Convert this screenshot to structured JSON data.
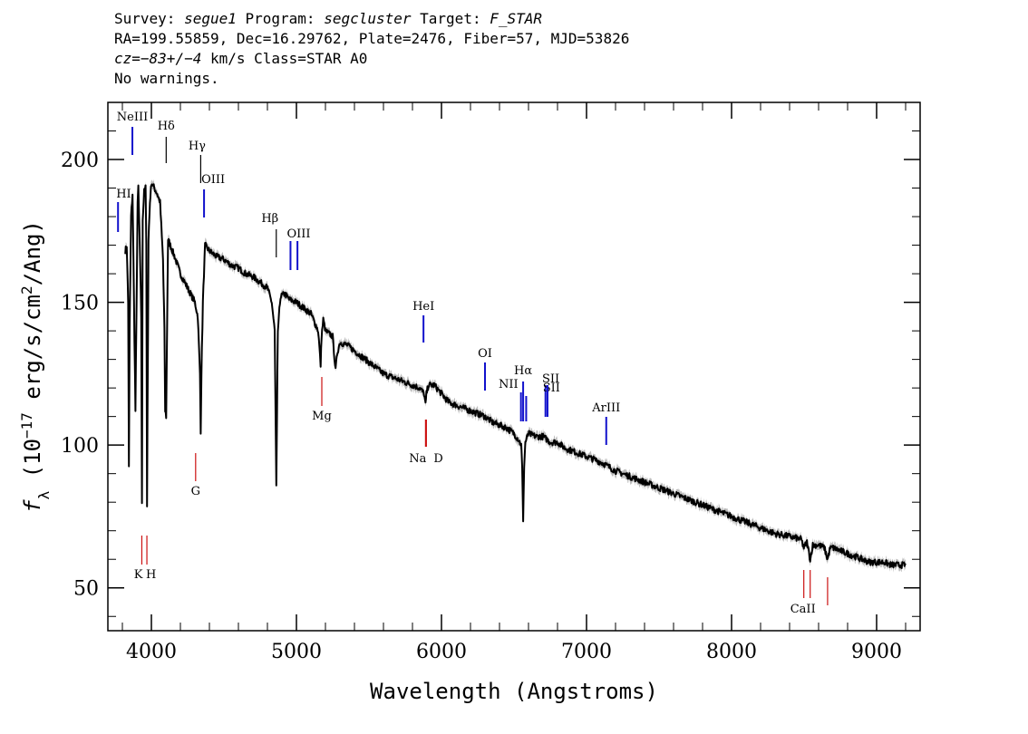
{
  "header": {
    "line1": {
      "survey_label": "Survey: ",
      "survey": "segue1",
      "program_label": " Program: ",
      "program": "segcluster",
      "target_label": " Target: ",
      "target": "F_STAR"
    },
    "line2": "RA=199.55859, Dec=16.29762, Plate=2476, Fiber=57, MJD=53826",
    "line3": {
      "cz": "cz",
      "eq": "=",
      "value": "−83+/−4",
      "rest": " km/s Class=STAR A0"
    },
    "line4": "No warnings."
  },
  "chart_data": {
    "type": "line",
    "title": "",
    "xlabel": "Wavelength (Angstroms)",
    "ylabel": {
      "f": "f",
      "sub": "λ",
      "open": " (10",
      "sup": "−17",
      "mid": " erg/s/cm",
      "sup2": "2",
      "close": "/Ang)"
    },
    "xlim": [
      3700,
      9300
    ],
    "ylim": [
      35,
      220
    ],
    "xticks": [
      4000,
      5000,
      6000,
      7000,
      8000,
      9000
    ],
    "xtick_labels": [
      "4000",
      "5000",
      "6000",
      "7000",
      "8000",
      "9000"
    ],
    "yticks": [
      50,
      100,
      150,
      200
    ],
    "ytick_labels": [
      "50",
      "100",
      "150",
      "200"
    ],
    "series": [
      {
        "color": "#000000",
        "error_color": "#bbbbbb",
        "x": [
          3820,
          3830,
          3840,
          3845,
          3850,
          3860,
          3870,
          3875,
          3880,
          3890,
          3900,
          3905,
          3910,
          3920,
          3930,
          3935,
          3940,
          3950,
          3960,
          3965,
          3970,
          3980,
          3990,
          4000,
          4020,
          4040,
          4060,
          4080,
          4090,
          4095,
          4102,
          4108,
          4115,
          4130,
          4160,
          4200,
          4250,
          4300,
          4320,
          4335,
          4340,
          4345,
          4355,
          4370,
          4400,
          4450,
          4500,
          4550,
          4600,
          4650,
          4700,
          4750,
          4800,
          4830,
          4850,
          4856,
          4861,
          4866,
          4872,
          4890,
          4920,
          4950,
          5000,
          5050,
          5100,
          5150,
          5167,
          5173,
          5185,
          5200,
          5250,
          5270,
          5280,
          5300,
          5350,
          5400,
          5450,
          5500,
          5550,
          5600,
          5650,
          5700,
          5750,
          5800,
          5850,
          5880,
          5890,
          5896,
          5910,
          5950,
          6000,
          6050,
          6100,
          6150,
          6200,
          6250,
          6300,
          6350,
          6400,
          6450,
          6500,
          6530,
          6550,
          6556,
          6563,
          6570,
          6578,
          6600,
          6650,
          6700,
          6750,
          6800,
          6850,
          6900,
          6950,
          7000,
          7100,
          7200,
          7300,
          7400,
          7500,
          7600,
          7700,
          7800,
          7900,
          8000,
          8100,
          8200,
          8300,
          8400,
          8480,
          8498,
          8520,
          8542,
          8560,
          8600,
          8640,
          8662,
          8680,
          8700,
          8750,
          8800,
          8850,
          8900,
          8950,
          9000,
          9050,
          9100,
          9150,
          9200
        ],
        "y": [
          168,
          170,
          150,
          92,
          140,
          180,
          188,
          170,
          150,
          112,
          160,
          185,
          190,
          170,
          145,
          80,
          178,
          190,
          190,
          170,
          78,
          172,
          185,
          192,
          190,
          188,
          185,
          165,
          140,
          112,
          110,
          140,
          172,
          170,
          166,
          160,
          155,
          150,
          145,
          125,
          105,
          125,
          150,
          170,
          168,
          166,
          165,
          163,
          162,
          160,
          159,
          157,
          155,
          150,
          140,
          110,
          85,
          110,
          140,
          152,
          153,
          151,
          150,
          148,
          146,
          140,
          128,
          138,
          144,
          140,
          138,
          126,
          132,
          136,
          135,
          133,
          131,
          129,
          127,
          125,
          124,
          123,
          122,
          121,
          120,
          118,
          114,
          118,
          121,
          121,
          118,
          115,
          114,
          113,
          112,
          111,
          110,
          108,
          107,
          106,
          104,
          102,
          100,
          92,
          74,
          92,
          101,
          104,
          103,
          103,
          101,
          101,
          99,
          98,
          97,
          96,
          94,
          91,
          89,
          87,
          85,
          83,
          81,
          79,
          77,
          75,
          73,
          71,
          69,
          68,
          67,
          64,
          66,
          60,
          65,
          65,
          64,
          60,
          64,
          64,
          63,
          62,
          61,
          60,
          59,
          59,
          59,
          58,
          58,
          58
        ]
      }
    ],
    "line_markers": [
      {
        "label": "HI",
        "x": 3770,
        "kind": "emission",
        "color": "#1111cc"
      },
      {
        "label": "NeIII",
        "x": 3869,
        "kind": "emission",
        "color": "#1111cc"
      },
      {
        "label": "Hδ",
        "x": 4102,
        "kind": "absorption",
        "color": "#000000"
      },
      {
        "label": "Hγ",
        "x": 4340,
        "kind": "absorption",
        "color": "#000000"
      },
      {
        "label": "OIII",
        "x": 4363,
        "kind": "emission",
        "color": "#1111cc"
      },
      {
        "label": "Hβ",
        "x": 4861,
        "kind": "absorption",
        "color": "#000000"
      },
      {
        "label": "OIII",
        "x": 4959,
        "kind": "emission",
        "color": "#1111cc"
      },
      {
        "label": "OIII",
        "x": 5007,
        "kind": "emission",
        "color": "#1111cc"
      },
      {
        "label": "HeI",
        "x": 5876,
        "kind": "emission",
        "color": "#1111cc"
      },
      {
        "label": "OI",
        "x": 6300,
        "kind": "emission",
        "color": "#1111cc"
      },
      {
        "label": "NII",
        "x": 6548,
        "kind": "emission",
        "color": "#1111cc"
      },
      {
        "label": "Hα",
        "x": 6563,
        "kind": "emission",
        "color": "#1111cc"
      },
      {
        "label": "NII",
        "x": 6584,
        "kind": "emission",
        "color": "#1111cc"
      },
      {
        "label": "SII",
        "x": 6717,
        "kind": "emission",
        "color": "#1111cc"
      },
      {
        "label": "SII",
        "x": 6731,
        "kind": "emission",
        "color": "#1111cc"
      },
      {
        "label": "ArIII",
        "x": 7136,
        "kind": "emission",
        "color": "#1111cc"
      },
      {
        "label": "K",
        "x": 3934,
        "kind": "stellar",
        "color": "#cc1111"
      },
      {
        "label": "H",
        "x": 3969,
        "kind": "stellar",
        "color": "#cc1111"
      },
      {
        "label": "G",
        "x": 4305,
        "kind": "stellar",
        "color": "#cc1111"
      },
      {
        "label": "Mg",
        "x": 5175,
        "kind": "stellar",
        "color": "#cc1111"
      },
      {
        "label": "Na",
        "x": 5890,
        "kind": "stellar",
        "color": "#cc1111"
      },
      {
        "label": "D",
        "x": 5896,
        "kind": "stellar",
        "color": "#cc1111"
      },
      {
        "label": "CaII",
        "x": 8498,
        "kind": "stellar",
        "color": "#cc1111"
      },
      {
        "label": "CaII",
        "x": 8542,
        "kind": "stellar",
        "color": "#cc1111"
      },
      {
        "label": "CaII",
        "x": 8662,
        "kind": "stellar",
        "color": "#cc1111"
      }
    ],
    "grid": false,
    "legend": "none"
  }
}
